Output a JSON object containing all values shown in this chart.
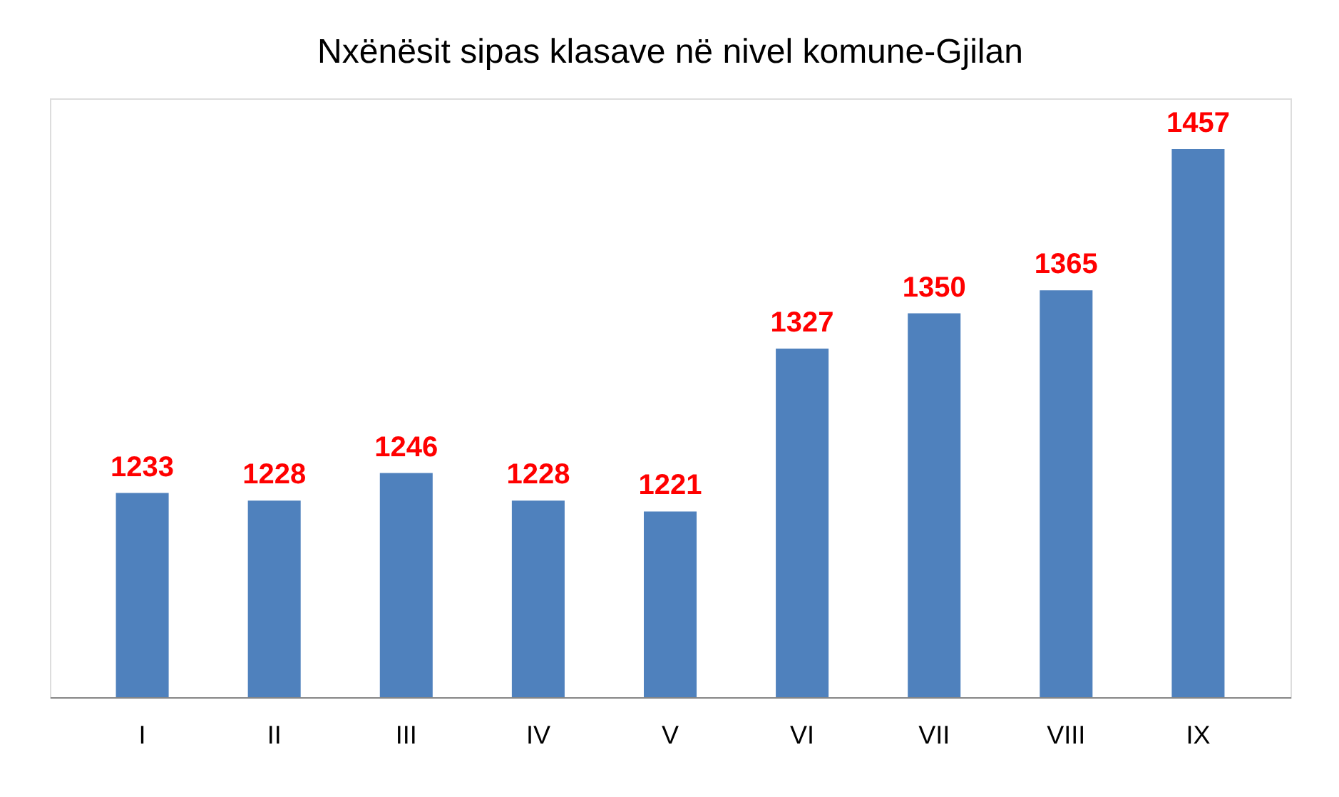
{
  "chart_data": {
    "type": "bar",
    "title": "Nxënësit sipas klasave në nivel komune-Gjilan",
    "categories": [
      "I",
      "II",
      "III",
      "IV",
      "V",
      "VI",
      "VII",
      "VIII",
      "IX"
    ],
    "values": [
      1233,
      1228,
      1246,
      1228,
      1221,
      1327,
      1350,
      1365,
      1457
    ],
    "color": "#4f81bd",
    "data_labels": true,
    "ylim": [
      1100,
      1490
    ],
    "tick_labels": "x",
    "grid": false
  }
}
